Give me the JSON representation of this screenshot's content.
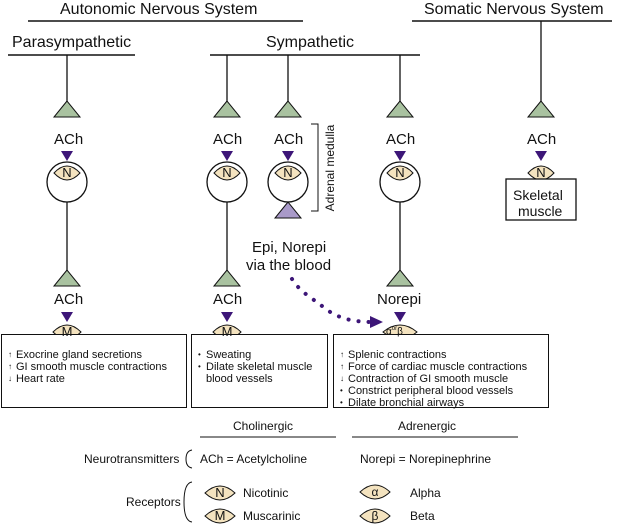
{
  "headers": {
    "autonomic": "Autonomic Nervous System",
    "somatic": "Somatic Nervous System",
    "parasympathetic": "Parasympathetic",
    "sympathetic": "Sympathetic"
  },
  "neurotransmitters": {
    "ach": "ACh",
    "norepi": "Norepi",
    "epi_norepi_line1": "Epi, Norepi",
    "epi_norepi_line2": "via the blood"
  },
  "adrenal_medulla": "Adrenal medulla",
  "receptor_letters": {
    "nicotinic": "N",
    "muscarinic": "M",
    "alpha": "α",
    "beta": "β",
    "alpha_or_beta_or": "or"
  },
  "skeletal_muscle": {
    "line1": "Skeletal",
    "line2": "muscle"
  },
  "effects": {
    "parasympathetic": [
      {
        "marker": "↑",
        "text": "Exocrine gland secretions"
      },
      {
        "marker": "↑",
        "text": "GI smooth muscle contractions"
      },
      {
        "marker": "↓",
        "text": "Heart rate"
      }
    ],
    "sympathetic_cholinergic": [
      {
        "marker": "•",
        "text": "Sweating"
      },
      {
        "marker": "•",
        "text": "Dilate skeletal muscle"
      },
      {
        "marker": "",
        "text": "blood vessels"
      }
    ],
    "sympathetic_adrenergic": [
      {
        "marker": "↑",
        "text": "Splenic contractions"
      },
      {
        "marker": "↑",
        "text": "Force of cardiac muscle contractions"
      },
      {
        "marker": "↓",
        "text": "Contraction of GI smooth muscle"
      },
      {
        "marker": "•",
        "text": "Constrict peripheral blood vessels"
      },
      {
        "marker": "•",
        "text": "Dilate bronchial airways"
      }
    ]
  },
  "legend": {
    "cholinergic": "Cholinergic",
    "adrenergic": "Adrenergic",
    "neurotransmitters_label": "Neurotransmitters",
    "ach_def": "ACh = Acetylcholine",
    "norepi_def": "Norepi = Norepinephrine",
    "receptors_label": "Receptors",
    "nicotinic": "Nicotinic",
    "muscarinic": "Muscarinic",
    "alpha": "Alpha",
    "beta": "Beta"
  },
  "colors": {
    "terminal_green": "#a9c2a0",
    "arrow_purple": "#3d1678",
    "receptor_fill": "#f4e3bf",
    "adrenal_terminal": "#a99ac9",
    "line": "#111111"
  }
}
